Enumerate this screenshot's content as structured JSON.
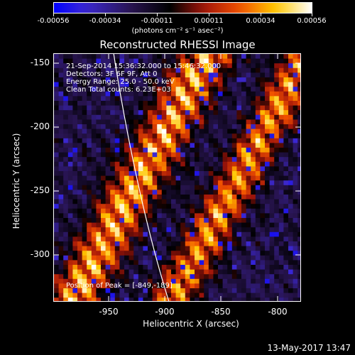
{
  "colorbar": {
    "labels": [
      "-0.00056",
      "-0.00034",
      "-0.00011",
      "0.00011",
      "0.00034",
      "0.00056"
    ],
    "units": "(photons cm⁻² s⁻¹ asec⁻²)"
  },
  "plot": {
    "title": "Reconstructed RHESSI Image",
    "xlabel": "Heliocentric X (arcsec)",
    "ylabel": "Heliocentric Y (arcsec)",
    "xticks": [
      "-950",
      "-900",
      "-850",
      "-800"
    ],
    "yticks": [
      "-150",
      "-200",
      "-250",
      "-300"
    ],
    "annotations": {
      "time_range": "21-Sep-2014 15:36:32.000 to 15:46:32.000",
      "detectors": "Detectors: 3F 6F 9F, Att 0",
      "energy": "Energy Range: 25.0 - 50.0 keV",
      "method": "Clean     Total counts: 6.23E+03",
      "peak": "Position of Peak = [-849,-189]"
    }
  },
  "footer": "13-May-2017 13:47",
  "colors": {
    "background": "#000000",
    "foreground": "#ffffff"
  }
}
